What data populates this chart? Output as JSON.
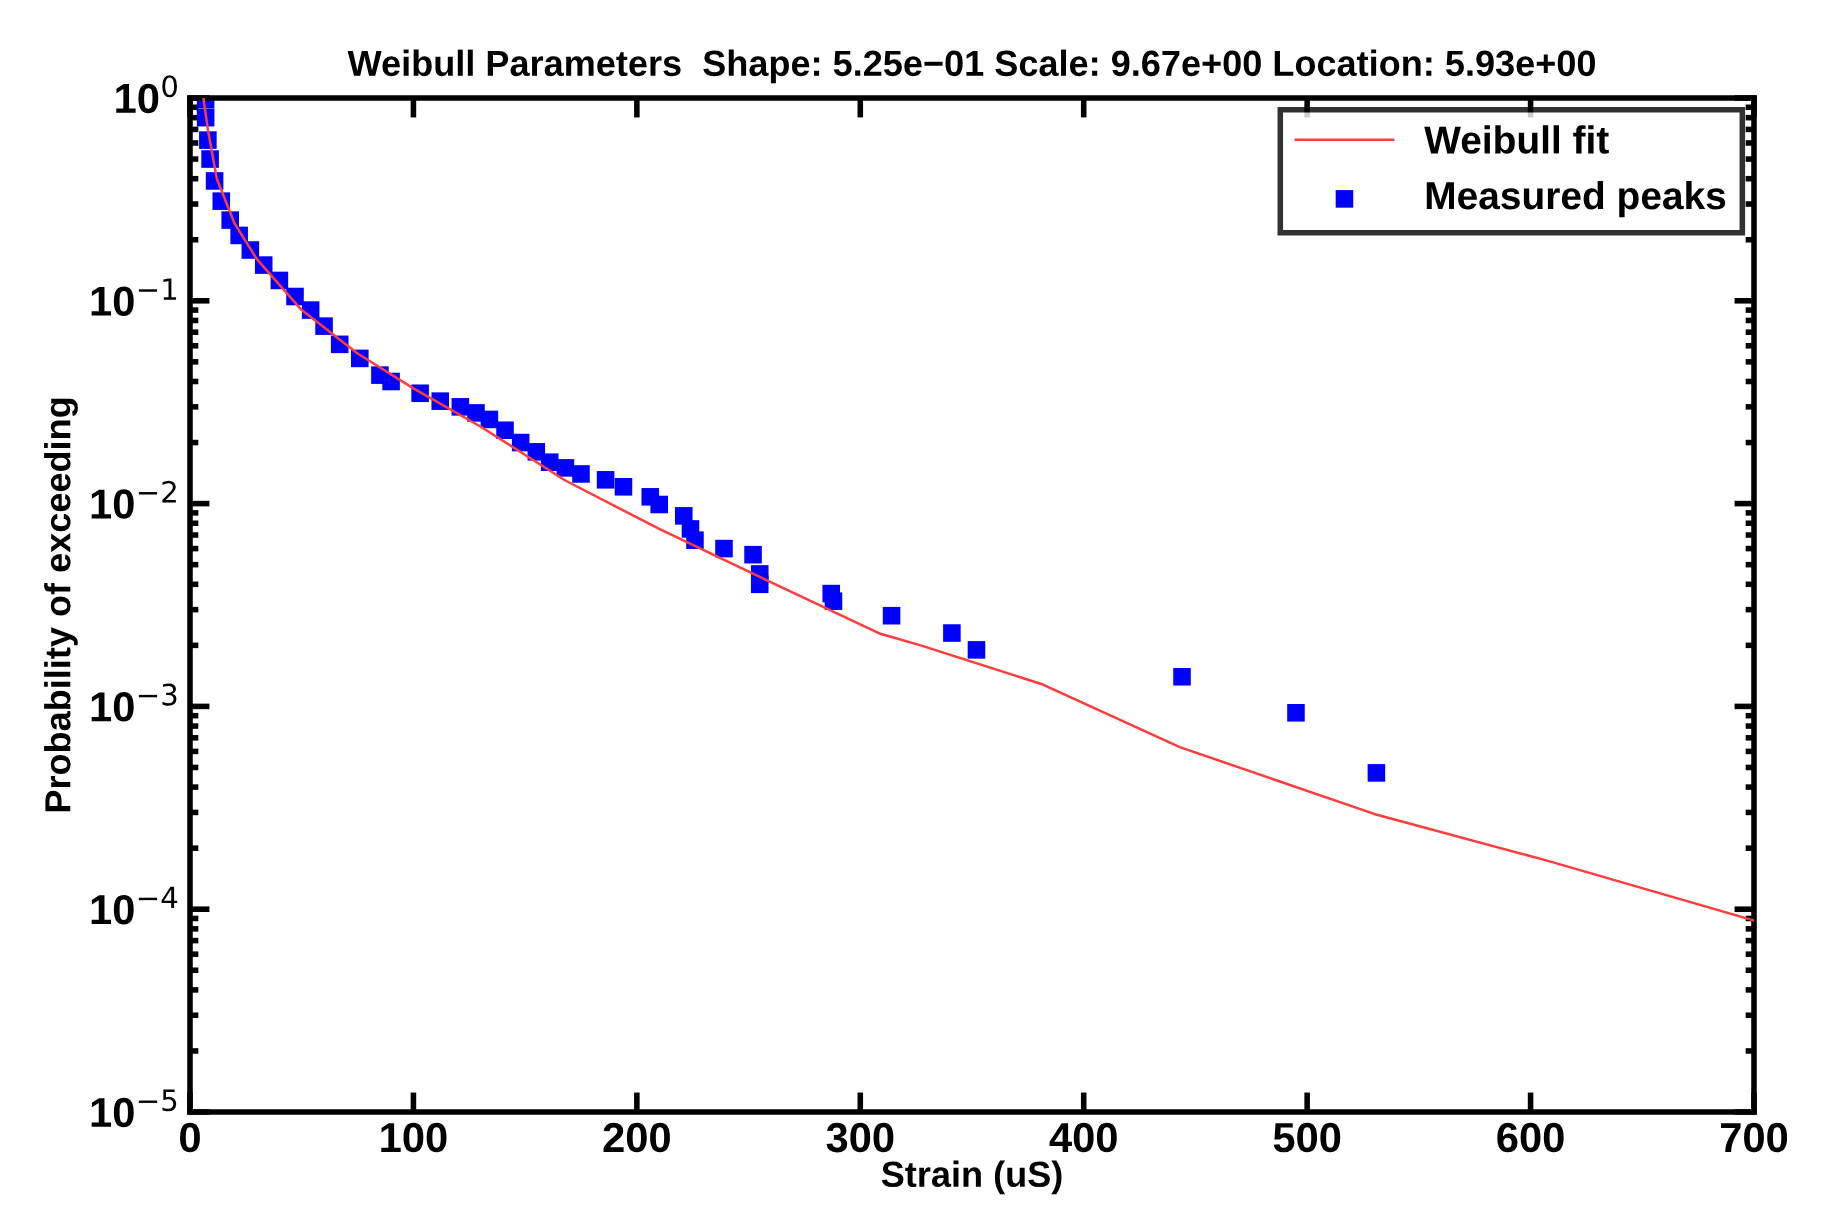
{
  "chart_data": {
    "type": "scatter",
    "title": "Weibull Parameters  Shape: 5.25e−01 Scale: 9.67e+00 Location: 5.93e+00",
    "xlabel": "Strain (uS)",
    "ylabel": "Probability of exceeding",
    "log": "y",
    "legend": "top right",
    "xlim": [
      0,
      700
    ],
    "xticks": [
      0,
      100,
      200,
      300,
      400,
      500,
      600,
      700
    ],
    "ylim": [
      1e-05,
      1
    ],
    "yticks": [
      {
        "value": 1,
        "label": "10$^{0}$"
      },
      {
        "value": 0.1,
        "label": "10$^{−1}$"
      },
      {
        "value": 0.01,
        "label": "10$^{−2}$"
      },
      {
        "value": 0.001,
        "label": "10$^{−3}$"
      },
      {
        "value": 0.0001,
        "label": "10$^{−4}$"
      },
      {
        "value": 1e-05,
        "label": "10$^{−5}$"
      }
    ],
    "series": [
      {
        "name": "Weibull fit",
        "type": "line",
        "line_style": "solid",
        "color": "#ff3b3b",
        "x": [
          6,
          8,
          12,
          20,
          30,
          50,
          75,
          100,
          130,
          168,
          210,
          258,
          309,
          327,
          381,
          443,
          530,
          607,
          700
        ],
        "values": [
          1,
          0.7,
          0.4,
          0.24,
          0.16,
          0.09,
          0.055,
          0.037,
          0.024,
          0.013,
          0.0075,
          0.0042,
          0.00228,
          0.002,
          0.00129,
          0.00063,
          0.000295,
          0.000174,
          8.8e-05
        ]
      },
      {
        "name": "Measured peaks",
        "marker": "square",
        "color": "#0000ff",
        "x": [
          7,
          7,
          8,
          9,
          11,
          14,
          18,
          22,
          27,
          33,
          40,
          47,
          54,
          60,
          67,
          76,
          85,
          90,
          103,
          112,
          121,
          128,
          134,
          141,
          148,
          155,
          161,
          168,
          175,
          186,
          194,
          206,
          210,
          221,
          224,
          226,
          239,
          252,
          255,
          255,
          287,
          288,
          314,
          341,
          352,
          444,
          495,
          531
        ],
        "values": [
          0.98,
          0.8,
          0.62,
          0.5,
          0.39,
          0.31,
          0.25,
          0.21,
          0.178,
          0.15,
          0.126,
          0.105,
          0.09,
          0.075,
          0.061,
          0.052,
          0.043,
          0.04,
          0.035,
          0.032,
          0.03,
          0.028,
          0.026,
          0.023,
          0.02,
          0.018,
          0.016,
          0.015,
          0.014,
          0.0131,
          0.0121,
          0.0108,
          0.0099,
          0.0087,
          0.0075,
          0.0066,
          0.006,
          0.0056,
          0.0045,
          0.004,
          0.0036,
          0.0033,
          0.0028,
          0.0023,
          0.0019,
          0.0014,
          0.00093,
          0.00047
        ]
      }
    ]
  }
}
